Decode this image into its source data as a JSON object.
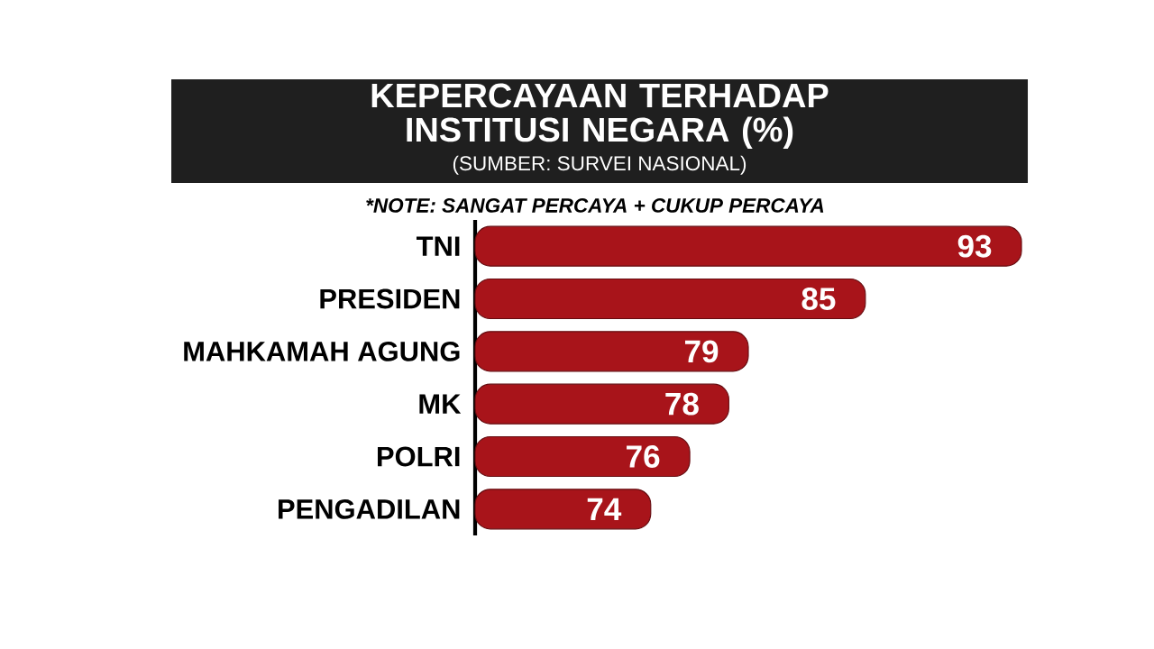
{
  "chart_data": {
    "type": "bar",
    "orientation": "horizontal",
    "title": "KEPERCAYAAN TERHADAP INSTITUSI NEGARA (%)",
    "subtitle": "(SUMBER: SURVEI NASIONAL)",
    "annotations": [
      "*NOTE: SANGAT PERCAYA + CUKUP PERCAYA"
    ],
    "categories": [
      "TNI",
      "PRESIDEN",
      "MAHKAMAH AGUNG",
      "MK",
      "POLRI",
      "PENGADILAN"
    ],
    "values": [
      93,
      85,
      79,
      78,
      76,
      74
    ],
    "color": "#a8141a",
    "data_labels": true,
    "xlim": [
      65,
      93
    ]
  }
}
